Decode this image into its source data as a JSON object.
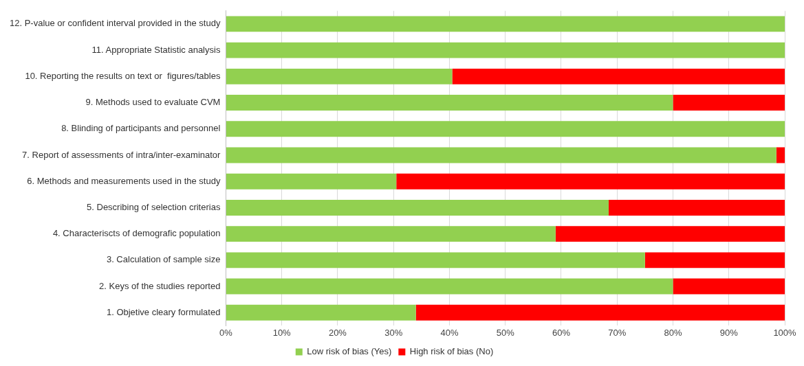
{
  "chart_data": {
    "type": "bar",
    "orientation": "horizontal",
    "stacked": true,
    "categories": [
      "12. P-value or confident interval provided in the study",
      "11. Appropriate Statistic analysis",
      "10. Reporting the results on text or  figures/tables",
      "9. Methods used to evaluate CVM",
      "8. Blinding of participants and personnel",
      "7. Report of assessments of intra/inter-examinator",
      "6. Methods and measurements used in the study",
      "5. Describing of selection criterias",
      "4. Characteriscts of demografic population",
      "3. Calculation of sample size",
      "2. Keys of the studies reported",
      "1. Objetive cleary formulated"
    ],
    "series": [
      {
        "name": "Low risk of bias (Yes)",
        "color": "#92d050",
        "values": [
          100,
          100,
          40.5,
          80,
          100,
          98.5,
          30.5,
          68.5,
          59,
          75,
          80,
          34
        ]
      },
      {
        "name": "High risk of bias (No)",
        "color": "#ff0000",
        "values": [
          0,
          0,
          59.5,
          20,
          0,
          1.5,
          69.5,
          31.5,
          41,
          25,
          20,
          66
        ]
      }
    ],
    "xlim": [
      0,
      100
    ],
    "xticks": [
      {
        "value": 0,
        "label": "0%"
      },
      {
        "value": 10,
        "label": "10%"
      },
      {
        "value": 20,
        "label": "20%"
      },
      {
        "value": 30,
        "label": "30%"
      },
      {
        "value": 40,
        "label": "40%"
      },
      {
        "value": 50,
        "label": "50%"
      },
      {
        "value": 60,
        "label": "60%"
      },
      {
        "value": 70,
        "label": "70%"
      },
      {
        "value": 80,
        "label": "80%"
      },
      {
        "value": 90,
        "label": "90%"
      },
      {
        "value": 100,
        "label": "100%"
      }
    ],
    "grid": "x",
    "legend": "bottom"
  }
}
